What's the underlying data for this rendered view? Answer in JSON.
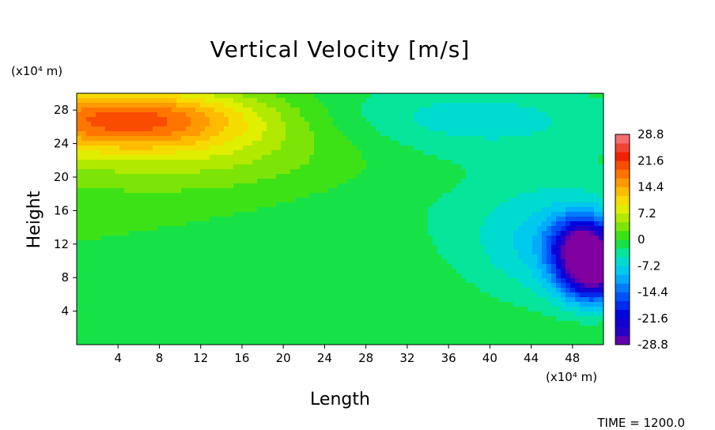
{
  "chart_data": {
    "type": "heatmap",
    "title": "Vertical Velocity [m/s]",
    "xlabel": "Length",
    "ylabel": "Height",
    "x_unit": "(x10⁴ m)",
    "y_unit": "(x10⁴ m)",
    "xlim": [
      0,
      51
    ],
    "ylim": [
      0,
      30
    ],
    "x_ticks": [
      "4",
      "8",
      "12",
      "16",
      "20",
      "24",
      "28",
      "32",
      "36",
      "40",
      "44",
      "48"
    ],
    "y_ticks": [
      "4",
      "8",
      "12",
      "16",
      "20",
      "24",
      "28"
    ],
    "colorbar_labels": [
      "28.8",
      "21.6",
      "14.4",
      "7.2",
      "0",
      "-7.2",
      "-14.4",
      "-21.6",
      "-28.8"
    ],
    "color_range": [
      -28.8,
      28.8
    ],
    "contour_step": 2.4,
    "background_value": 0,
    "features": [
      {
        "kind": "updraft-maximum",
        "x": 4.5,
        "y": 27,
        "value": 18
      },
      {
        "kind": "downdraft-minimum",
        "x": 50,
        "y": 8.5,
        "value": -26
      },
      {
        "kind": "downdraft-minimum",
        "x": 49,
        "y": 12,
        "value": -22
      },
      {
        "kind": "weak-downdraft",
        "x": 38,
        "y": 27,
        "value": -5
      }
    ],
    "grid": false,
    "legend": "colorbar-right"
  },
  "footer": {
    "time_text": "TIME = 1200.0"
  }
}
